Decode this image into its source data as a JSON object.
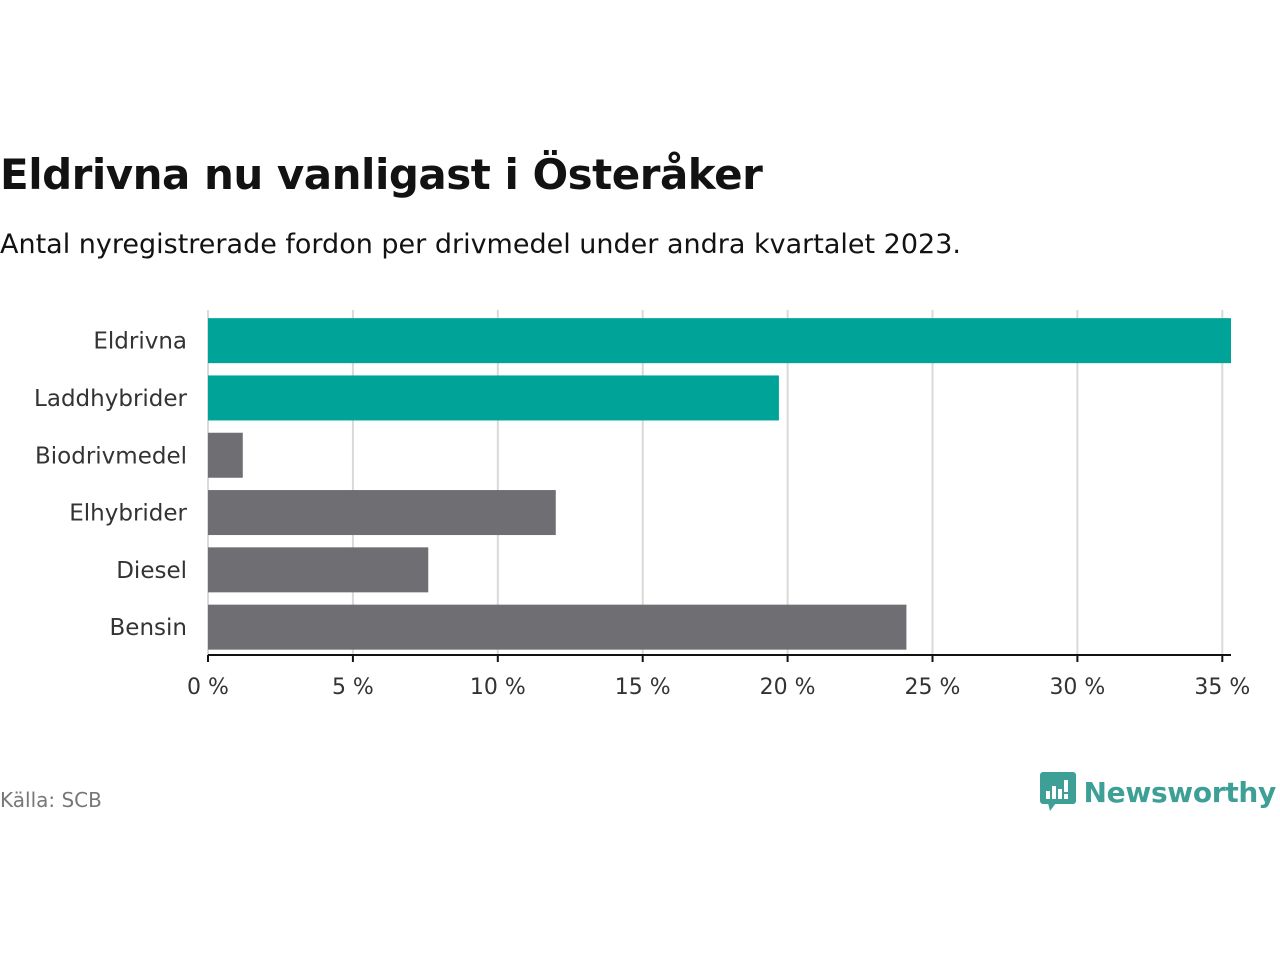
{
  "header": {
    "title": "Eldrivna nu vanligast i Österåker",
    "subtitle": "Antal nyregistrerade fordon per drivmedel under andra kvartalet 2023."
  },
  "footer": {
    "source": "Källa: SCB",
    "brand": "Newsworthy"
  },
  "colors": {
    "highlight": "#00a398",
    "neutral": "#6e6e73",
    "grid": "#d9d9d9",
    "brand": "#3d9f95"
  },
  "chart_data": {
    "type": "bar",
    "orientation": "horizontal",
    "title": "Eldrivna nu vanligast i Österåker",
    "subtitle": "Antal nyregistrerade fordon per drivmedel under andra kvartalet 2023.",
    "xlabel": "",
    "ylabel": "",
    "unit": "%",
    "xlim": [
      0,
      35.3
    ],
    "ticks": [
      0,
      5,
      10,
      15,
      20,
      25,
      30,
      35
    ],
    "tick_labels": [
      "0 %",
      "5 %",
      "10 %",
      "15 %",
      "20 %",
      "25 %",
      "30 %",
      "35 %"
    ],
    "grid": true,
    "categories": [
      "Eldrivna",
      "Laddhybrider",
      "Biodrivmedel",
      "Elhybrider",
      "Diesel",
      "Bensin"
    ],
    "values": [
      35.3,
      19.7,
      1.2,
      12.0,
      7.6,
      24.1
    ],
    "highlighted": [
      true,
      true,
      false,
      false,
      false,
      false
    ]
  }
}
